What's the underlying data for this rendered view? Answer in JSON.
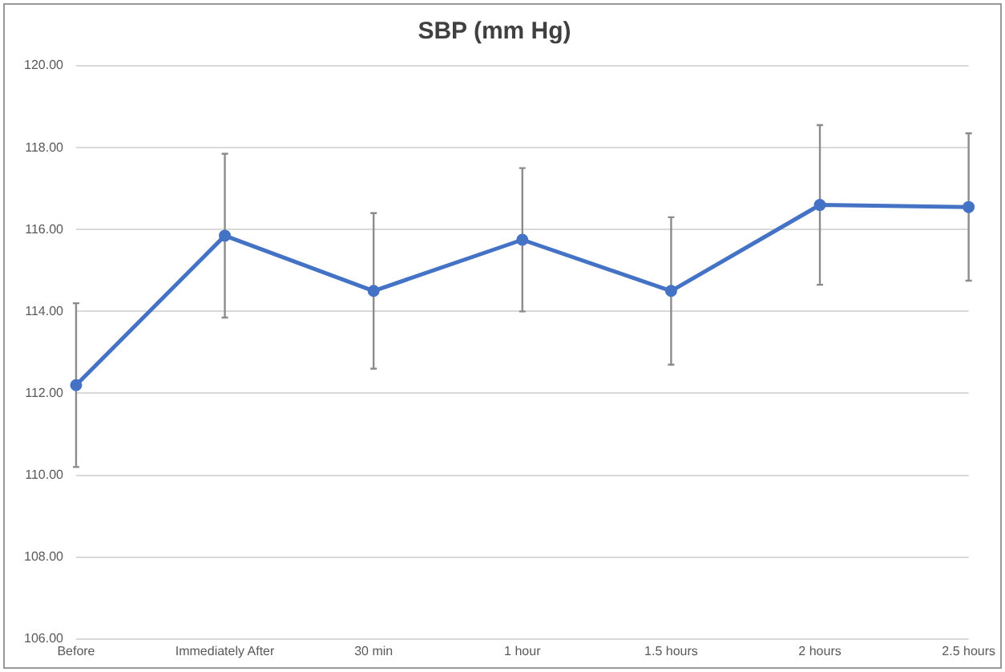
{
  "chart_data": {
    "type": "line",
    "title": "SBP (mm Hg)",
    "categories": [
      "Before",
      "Immediately After",
      "30 min",
      "1 hour",
      "1.5 hours",
      "2 hours",
      "2.5 hours"
    ],
    "series": [
      {
        "color": "#4472c4",
        "values": [
          112.2,
          115.85,
          114.5,
          115.75,
          114.5,
          116.6,
          116.55
        ],
        "errors": [
          2,
          2,
          1.9,
          1.75,
          1.8,
          1.95,
          1.8
        ]
      }
    ],
    "ylim": [
      106,
      120
    ],
    "yticks": [
      {
        "value": 106,
        "label": "106.00"
      },
      {
        "value": 108,
        "label": "108.00"
      },
      {
        "value": 110,
        "label": "110.00"
      },
      {
        "value": 112,
        "label": "112.00"
      },
      {
        "value": 114,
        "label": "114.00"
      },
      {
        "value": 116,
        "label": "116.00"
      },
      {
        "value": 118,
        "label": "118.00"
      },
      {
        "value": 120,
        "label": "120.00"
      }
    ],
    "grid": "y",
    "marker": "circle",
    "line_style": "solid",
    "legend": false
  }
}
